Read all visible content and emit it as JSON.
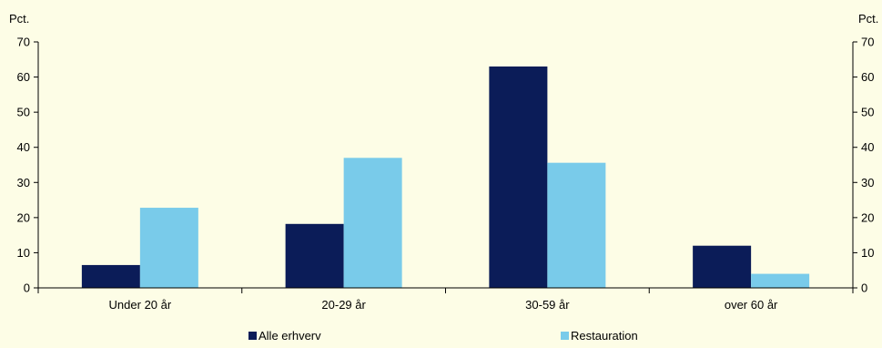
{
  "chart_data": {
    "type": "bar",
    "categories": [
      "Under 20 år",
      "20-29 år",
      "30-59 år",
      "over 60 år"
    ],
    "series": [
      {
        "name": "Alle erhverv",
        "values": [
          6.5,
          18.2,
          63,
          12
        ]
      },
      {
        "name": "Restauration",
        "values": [
          22.8,
          37,
          35.6,
          4
        ]
      }
    ],
    "y_unit_left": "Pct.",
    "y_unit_right": "Pct.",
    "ylim": [
      0,
      70
    ],
    "yticks": [
      0,
      10,
      20,
      30,
      40,
      50,
      60,
      70
    ],
    "grid": false,
    "legend_position": "bottom",
    "colors": {
      "background": "#fdfde6",
      "series": [
        "#0b1c58",
        "#79cbea"
      ],
      "axis": "#000000"
    }
  }
}
